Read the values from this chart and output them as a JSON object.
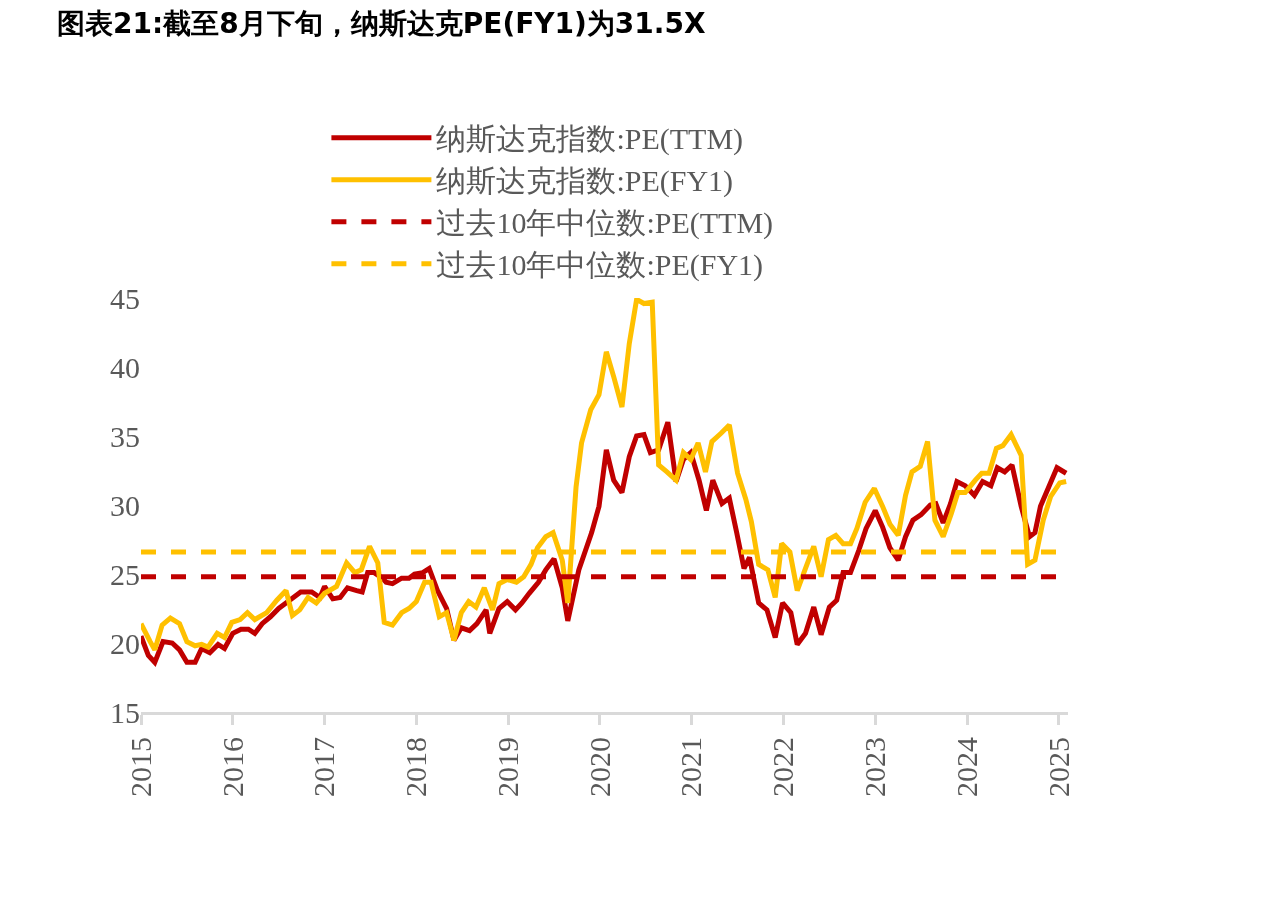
{
  "chart_data": {
    "type": "line",
    "title": "图表21:截至8月下旬，纳斯达克PE(FY1)为31.5X",
    "xlim": [
      2015,
      2025.1
    ],
    "xticks": [
      2015,
      2016,
      2017,
      2018,
      2019,
      2020,
      2021,
      2022,
      2023,
      2024,
      2025
    ],
    "ylim": [
      15,
      45
    ],
    "yticks": [
      15,
      20,
      25,
      30,
      35,
      40,
      45
    ],
    "grid": false,
    "legend": "top",
    "line_style": "solid",
    "marker": "none",
    "series": [
      {
        "name": "纳斯达克指数:PE(TTM)",
        "color": "#c00000",
        "x": [
          2015.0,
          2015.08,
          2015.15,
          2015.24,
          2015.34,
          2015.42,
          2015.5,
          2015.59,
          2015.66,
          2015.75,
          2015.84,
          2015.91,
          2016.0,
          2016.09,
          2016.17,
          2016.24,
          2016.32,
          2016.41,
          2016.5,
          2016.62,
          2016.74,
          2016.86,
          2016.95,
          2017.0,
          2017.09,
          2017.17,
          2017.25,
          2017.35,
          2017.41,
          2017.47,
          2017.54,
          2017.63,
          2017.67,
          2017.74,
          2017.84,
          2017.92,
          2017.98,
          2018.07,
          2018.14,
          2018.23,
          2018.33,
          2018.41,
          2018.49,
          2018.58,
          2018.66,
          2018.76,
          2018.8,
          2018.9,
          2018.99,
          2019.08,
          2019.15,
          2019.23,
          2019.33,
          2019.41,
          2019.5,
          2019.59,
          2019.65,
          2019.77,
          2019.91,
          2019.99,
          2020.07,
          2020.15,
          2020.24,
          2020.32,
          2020.4,
          2020.48,
          2020.55,
          2020.64,
          2020.74,
          2020.83,
          2020.91,
          2020.99,
          2021.08,
          2021.16,
          2021.23,
          2021.33,
          2021.41,
          2021.49,
          2021.57,
          2021.63,
          2021.73,
          2021.82,
          2021.91,
          2021.99,
          2022.08,
          2022.15,
          2022.24,
          2022.33,
          2022.41,
          2022.5,
          2022.58,
          2022.65,
          2022.73,
          2022.82,
          2022.9,
          2023.0,
          2023.08,
          2023.16,
          2023.25,
          2023.33,
          2023.41,
          2023.5,
          2023.6,
          2023.66,
          2023.74,
          2023.82,
          2023.89,
          2023.98,
          2024.08,
          2024.17,
          2024.26,
          2024.33,
          2024.41,
          2024.49,
          2024.59,
          2024.68,
          2024.74,
          2024.8,
          2024.89,
          2024.98,
          2025.08
        ],
        "values": [
          20.5,
          19.1,
          18.6,
          20.1,
          20.0,
          19.5,
          18.6,
          18.6,
          19.6,
          19.3,
          19.9,
          19.6,
          20.7,
          21.0,
          21.0,
          20.7,
          21.4,
          21.9,
          22.5,
          23.1,
          23.7,
          23.7,
          23.3,
          24.1,
          23.2,
          23.3,
          24.0,
          23.8,
          23.7,
          25.1,
          25.1,
          24.7,
          24.4,
          24.3,
          24.7,
          24.7,
          25.0,
          25.1,
          25.4,
          23.8,
          22.5,
          20.2,
          21.1,
          20.9,
          21.4,
          22.4,
          20.7,
          22.5,
          23.0,
          22.4,
          22.9,
          23.6,
          24.4,
          25.3,
          26.1,
          24.0,
          21.6,
          25.3,
          28.0,
          29.9,
          34.0,
          31.8,
          30.9,
          33.5,
          35.0,
          35.1,
          33.8,
          34.0,
          36.0,
          31.7,
          33.3,
          33.8,
          31.8,
          29.6,
          31.8,
          30.1,
          30.5,
          28.0,
          25.4,
          26.2,
          22.9,
          22.4,
          20.4,
          22.9,
          22.2,
          19.9,
          20.7,
          22.6,
          20.6,
          22.6,
          23.1,
          25.1,
          25.1,
          26.7,
          28.3,
          29.6,
          28.4,
          26.9,
          26.0,
          27.7,
          28.9,
          29.3,
          30.0,
          30.1,
          28.7,
          30.1,
          31.7,
          31.4,
          30.7,
          31.7,
          31.4,
          32.7,
          32.4,
          32.9,
          29.9,
          27.7,
          28.0,
          29.9,
          31.3,
          32.7,
          32.3
        ]
      },
      {
        "name": "纳斯达克指数:PE(FY1)",
        "color": "#ffc000",
        "x": [
          2015.0,
          2015.1,
          2015.15,
          2015.23,
          2015.32,
          2015.42,
          2015.5,
          2015.59,
          2015.66,
          2015.73,
          2015.83,
          2015.91,
          2015.99,
          2016.08,
          2016.16,
          2016.24,
          2016.37,
          2016.48,
          2016.58,
          2016.65,
          2016.73,
          2016.82,
          2016.91,
          2017.0,
          2017.13,
          2017.24,
          2017.33,
          2017.4,
          2017.49,
          2017.58,
          2017.65,
          2017.74,
          2017.84,
          2017.92,
          2018.0,
          2018.09,
          2018.16,
          2018.25,
          2018.33,
          2018.41,
          2018.49,
          2018.57,
          2018.65,
          2018.74,
          2018.83,
          2018.9,
          2018.99,
          2019.09,
          2019.17,
          2019.25,
          2019.32,
          2019.41,
          2019.49,
          2019.59,
          2019.65,
          2019.74,
          2019.8,
          2019.9,
          2019.99,
          2020.07,
          2020.15,
          2020.24,
          2020.32,
          2020.4,
          2020.48,
          2020.57,
          2020.64,
          2020.73,
          2020.83,
          2020.91,
          2020.99,
          2021.07,
          2021.15,
          2021.22,
          2021.32,
          2021.41,
          2021.5,
          2021.59,
          2021.65,
          2021.73,
          2021.83,
          2021.91,
          2021.98,
          2022.07,
          2022.15,
          2022.24,
          2022.33,
          2022.41,
          2022.49,
          2022.57,
          2022.65,
          2022.73,
          2022.8,
          2022.89,
          2022.99,
          2023.08,
          2023.16,
          2023.25,
          2023.33,
          2023.4,
          2023.49,
          2023.57,
          2023.65,
          2023.74,
          2023.83,
          2023.9,
          2023.98,
          2024.09,
          2024.16,
          2024.24,
          2024.32,
          2024.39,
          2024.48,
          2024.59,
          2024.66,
          2024.74,
          2024.83,
          2024.91,
          2025.01,
          2025.08
        ],
        "values": [
          21.4,
          20.1,
          19.5,
          21.3,
          21.8,
          21.4,
          20.1,
          19.8,
          19.9,
          19.7,
          20.7,
          20.4,
          21.5,
          21.7,
          22.2,
          21.7,
          22.2,
          23.1,
          23.8,
          22.0,
          22.4,
          23.3,
          22.9,
          23.6,
          24.1,
          25.8,
          25.1,
          25.3,
          27.0,
          25.8,
          21.5,
          21.3,
          22.2,
          22.5,
          23.0,
          24.4,
          24.4,
          21.9,
          22.2,
          20.2,
          22.2,
          23.0,
          22.6,
          24.0,
          22.4,
          24.3,
          24.6,
          24.4,
          24.8,
          25.7,
          26.9,
          27.7,
          28.0,
          26.0,
          22.9,
          31.3,
          34.5,
          36.9,
          38.0,
          41.1,
          39.3,
          37.1,
          41.7,
          44.9,
          44.6,
          44.7,
          32.9,
          32.4,
          31.8,
          33.8,
          33.3,
          34.5,
          32.4,
          34.6,
          35.2,
          35.8,
          32.3,
          30.4,
          28.8,
          25.7,
          25.3,
          23.3,
          27.2,
          26.6,
          23.8,
          25.4,
          27.0,
          24.8,
          27.5,
          27.8,
          27.2,
          27.2,
          28.3,
          30.2,
          31.2,
          29.9,
          28.6,
          27.8,
          30.7,
          32.4,
          32.8,
          34.6,
          28.9,
          27.7,
          29.4,
          30.9,
          30.9,
          31.8,
          32.3,
          32.3,
          34.1,
          34.3,
          35.1,
          33.6,
          25.7,
          26.0,
          28.9,
          30.6,
          31.6,
          31.7
        ]
      }
    ],
    "ref_lines": [
      {
        "axis": "y",
        "value": 24.8,
        "label": "过去10年中位数:PE(TTM)",
        "color": "#c00000",
        "line_style": "dashed"
      },
      {
        "axis": "y",
        "value": 26.6,
        "label": "过去10年中位数:PE(FY1)",
        "color": "#ffc000",
        "line_style": "dashed"
      }
    ]
  }
}
